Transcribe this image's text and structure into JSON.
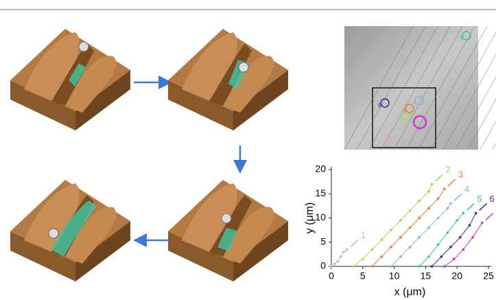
{
  "chart_data": {
    "type": "scatter",
    "xlabel": "x (μm)",
    "ylabel": "y (μm)",
    "xlim": [
      0,
      25
    ],
    "xticks": [
      0,
      5,
      10,
      15,
      20,
      25
    ],
    "ylim": [
      0,
      20
    ],
    "yticks": [
      0,
      5,
      10,
      15,
      20
    ],
    "series": [
      {
        "name": "1",
        "color": "#eda3bf",
        "x": [
          0,
          0.5,
          1,
          1.5,
          2,
          2.5
        ],
        "y": [
          0,
          0.5,
          1,
          2,
          3,
          3.5
        ]
      },
      {
        "name": "2",
        "color": "#a6d94a",
        "x": [
          3.5,
          5,
          6.5,
          8,
          9.5,
          11,
          12.5,
          14,
          15.5,
          16
        ],
        "y": [
          0,
          1.5,
          3.5,
          5.5,
          7.5,
          9.5,
          11.5,
          13.5,
          15.5,
          17
        ]
      },
      {
        "name": "3",
        "color": "#f07a30",
        "x": [
          6.5,
          8,
          9.5,
          11,
          12.5,
          14,
          15.5,
          17,
          18
        ],
        "y": [
          0,
          2,
          4,
          6,
          8,
          10,
          12,
          14,
          16
        ]
      },
      {
        "name": "4",
        "color": "#86b4e2",
        "x": [
          9.5,
          11,
          12.5,
          14,
          15.5,
          17,
          18.5,
          19
        ],
        "y": [
          0,
          2,
          4,
          6,
          8,
          10,
          12,
          13
        ]
      },
      {
        "name": "5",
        "color": "#2fc79c",
        "x": [
          14,
          15.5,
          17,
          18.5,
          20,
          21
        ],
        "y": [
          0,
          2,
          4.5,
          7,
          9.5,
          11
        ]
      },
      {
        "name": "6",
        "color": "#2e2a9c",
        "x": [
          16,
          17.5,
          19,
          20.5,
          22,
          23
        ],
        "y": [
          0,
          2,
          4,
          6,
          8.5,
          11
        ]
      },
      {
        "color": "#c935c9",
        "x": [
          18,
          19.5,
          21,
          22.5,
          24
        ],
        "y": [
          0,
          1.5,
          3.5,
          6,
          9
        ]
      }
    ]
  },
  "micrograph": {
    "labels": [
      {
        "text": "5",
        "color": "#2fc79c"
      },
      {
        "text": "6",
        "color": "#2e2a9c"
      },
      {
        "text": "4",
        "color": "#86b4e2"
      },
      {
        "text": "3",
        "color": "#f07a30"
      },
      {
        "text": "2",
        "color": "#a6d94a"
      },
      {
        "text": "1",
        "color": "#eda3bf"
      }
    ]
  }
}
